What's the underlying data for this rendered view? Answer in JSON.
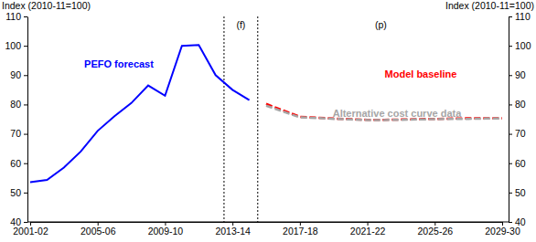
{
  "chart_data": {
    "type": "line",
    "y_label": "Index (2010-11=100)",
    "y2_label": "Index (2010-11=100)",
    "categories": [
      "2001-02",
      null,
      null,
      null,
      "2005-06",
      null,
      null,
      null,
      "2009-10",
      null,
      null,
      null,
      "2013-14",
      null,
      null,
      null,
      "2017-18",
      null,
      null,
      null,
      "2021-22",
      null,
      null,
      null,
      "2025-26",
      null,
      null,
      null,
      "2029-30"
    ],
    "ylim": [
      40,
      110
    ],
    "yticks": [
      40,
      50,
      60,
      70,
      80,
      90,
      100,
      110
    ],
    "y2lim": [
      40,
      110
    ],
    "y2ticks": [
      40,
      50,
      60,
      70,
      80,
      90,
      100,
      110
    ],
    "grid": false,
    "vlines": [
      11.5,
      13.5
    ],
    "annotations": [
      {
        "text": "(f)",
        "x": 12.5,
        "y": 106
      },
      {
        "text": "(p)",
        "x": 20.8,
        "y": 106
      }
    ],
    "series": [
      {
        "name": "PEFO forecast",
        "color": "#0000ff",
        "line_style": "solid",
        "values": [
          53.5,
          54.3,
          58.5,
          64,
          71,
          76,
          80.5,
          86.5,
          83,
          100,
          100.3,
          90,
          85,
          81.5,
          null,
          null,
          null,
          null,
          null,
          null,
          null,
          null,
          null,
          null,
          null,
          null,
          null,
          null,
          null
        ]
      },
      {
        "name": "Model baseline",
        "color": "#ff0000",
        "line_style": "dashed",
        "values": [
          null,
          null,
          null,
          null,
          null,
          null,
          null,
          null,
          null,
          null,
          null,
          null,
          null,
          null,
          80.2,
          78,
          75.8,
          75.5,
          75.2,
          75,
          74.8,
          74.8,
          74.9,
          75,
          75.1,
          75.2,
          75.3,
          75.3,
          75.3
        ]
      },
      {
        "name": "Alternative cost curve data",
        "color": "#a6a6a6",
        "line_style": "dashed",
        "values": [
          null,
          null,
          null,
          null,
          null,
          null,
          null,
          null,
          null,
          null,
          null,
          null,
          null,
          null,
          79.6,
          77.6,
          75.6,
          75.4,
          75.1,
          74.9,
          74.7,
          74.7,
          74.8,
          74.9,
          75,
          75.1,
          75.1,
          75.2,
          75.2
        ]
      }
    ]
  }
}
